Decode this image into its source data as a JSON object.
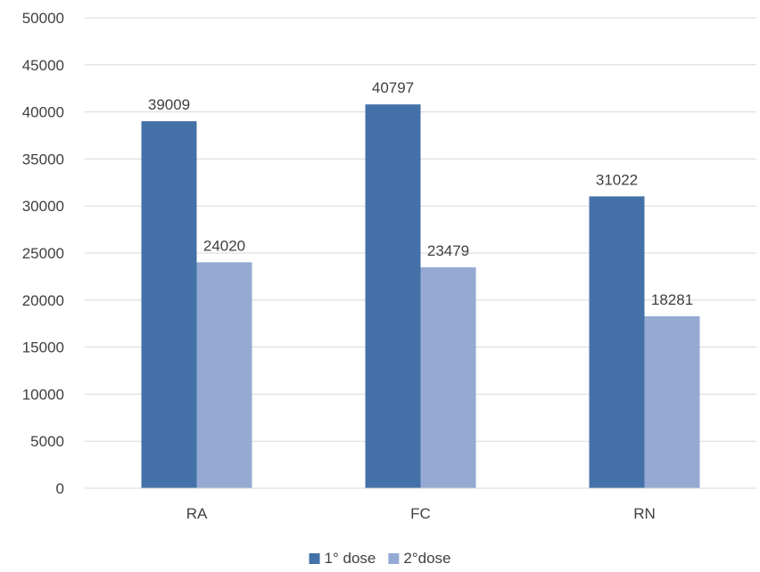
{
  "chart_data": {
    "type": "bar",
    "categories": [
      "RA",
      "FC",
      "RN"
    ],
    "series": [
      {
        "name": "1° dose",
        "values": [
          39009,
          40797,
          31022
        ],
        "color": "#4472a8"
      },
      {
        "name": "2°dose",
        "values": [
          24020,
          23479,
          18281
        ],
        "color": "#95aad3"
      }
    ],
    "ylim": [
      0,
      50000
    ],
    "yticks": [
      0,
      5000,
      10000,
      15000,
      20000,
      25000,
      30000,
      35000,
      40000,
      45000,
      50000
    ],
    "grid": true,
    "legend_position": "bottom",
    "data_labels": true
  }
}
